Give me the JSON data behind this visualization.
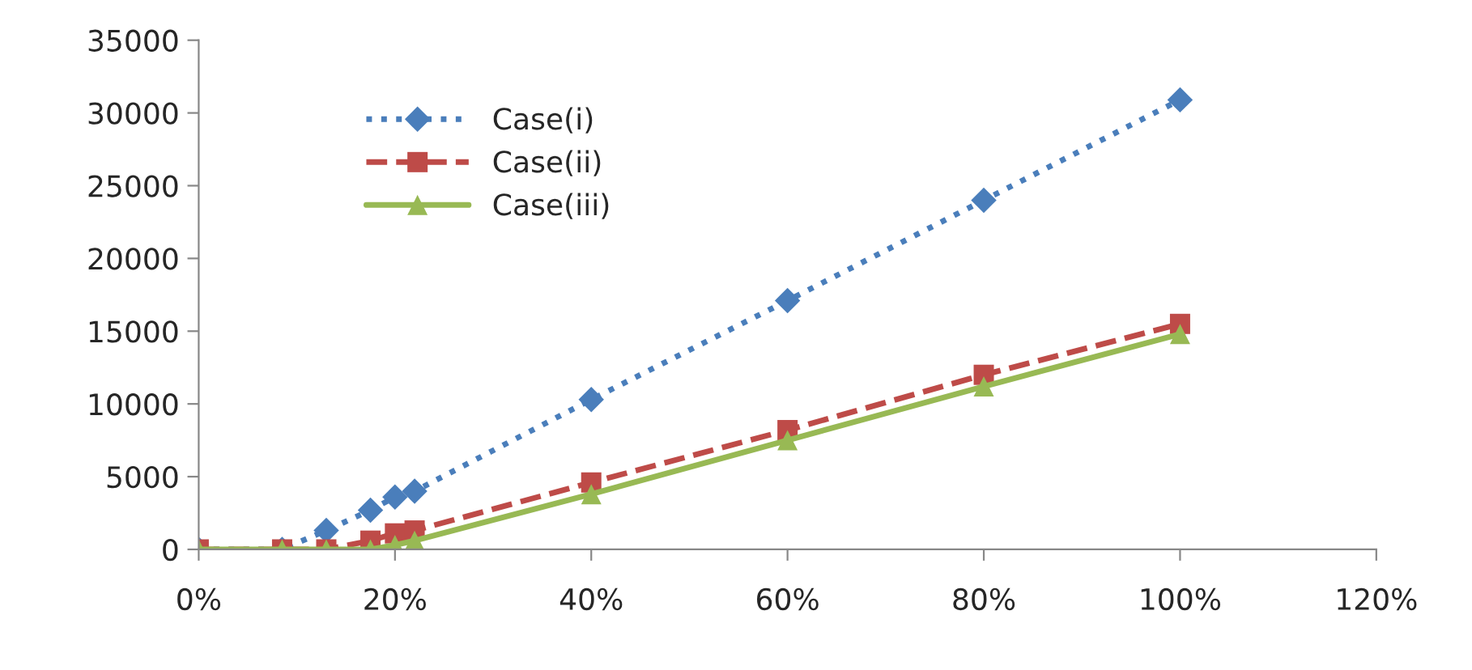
{
  "chart_data": {
    "type": "line",
    "x": [
      0,
      0.085,
      0.13,
      0.175,
      0.2,
      0.22,
      0.4,
      0.6,
      0.8,
      1.0
    ],
    "series": [
      {
        "name": "Case(i)",
        "color": "#4a7ebb",
        "marker": "diamond",
        "line_style": "dotted",
        "values": [
          0,
          0,
          1300,
          2700,
          3600,
          4000,
          10300,
          17100,
          24000,
          30900
        ]
      },
      {
        "name": "Case(ii)",
        "color": "#be4b48",
        "marker": "square",
        "line_style": "dashed",
        "values": [
          0,
          0,
          0,
          600,
          1100,
          1300,
          4600,
          8200,
          12000,
          15500
        ]
      },
      {
        "name": "Case(iii)",
        "color": "#98b954",
        "marker": "triangle",
        "line_style": "solid",
        "values": [
          0,
          0,
          0,
          0,
          300,
          600,
          3800,
          7500,
          11200,
          14800
        ]
      }
    ],
    "xlim": [
      0,
      1.2
    ],
    "xticks": [
      {
        "value": 0,
        "label": "0%"
      },
      {
        "value": 0.2,
        "label": "20%"
      },
      {
        "value": 0.4,
        "label": "40%"
      },
      {
        "value": 0.6,
        "label": "60%"
      },
      {
        "value": 0.8,
        "label": "80%"
      },
      {
        "value": 1.0,
        "label": "100%"
      },
      {
        "value": 1.2,
        "label": "120%"
      }
    ],
    "ylim": [
      0,
      35000
    ],
    "yticks": [
      0,
      5000,
      10000,
      15000,
      20000,
      25000,
      30000,
      35000
    ],
    "grid": false,
    "legend": "top left"
  }
}
